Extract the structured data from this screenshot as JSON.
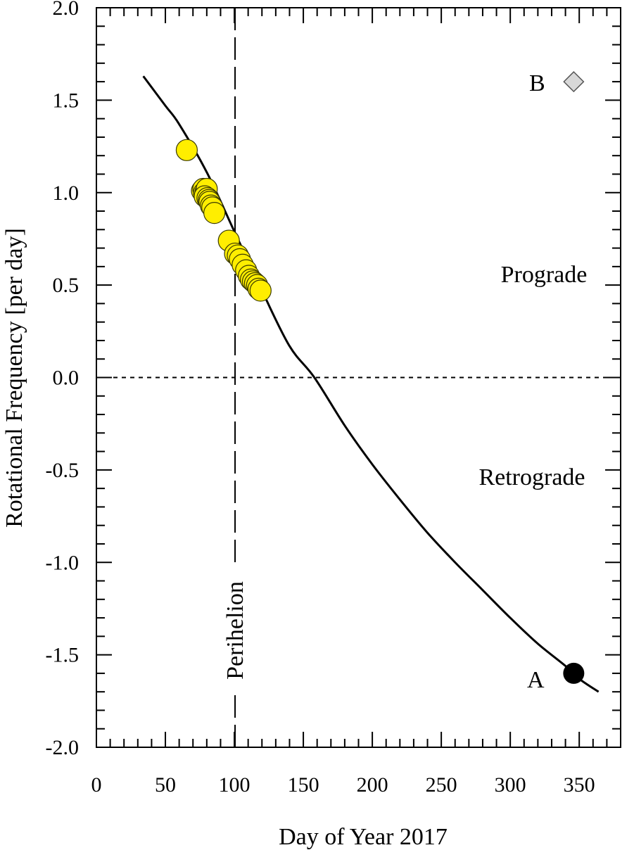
{
  "chart_data": {
    "type": "scatter",
    "xlabel": "Day of Year 2017",
    "ylabel": "Rotational Frequency [per day]",
    "xlim": [
      0,
      380
    ],
    "ylim": [
      -2.0,
      2.0
    ],
    "x_ticks": [
      "0",
      "50",
      "100",
      "150",
      "200",
      "250",
      "300",
      "350"
    ],
    "x_tick_values": [
      0,
      50,
      100,
      150,
      200,
      250,
      300,
      350
    ],
    "y_ticks": [
      "2.0",
      "1.5",
      "1.0",
      "0.5",
      "0.0",
      "-0.5",
      "-1.0",
      "-1.5",
      "-2.0"
    ],
    "y_tick_values": [
      2.0,
      1.5,
      1.0,
      0.5,
      0.0,
      -0.5,
      -1.0,
      -1.5,
      -2.0
    ],
    "grid": false,
    "series": [
      {
        "kind": "points",
        "color": "#ffee00",
        "x": [
          65.5,
          76.5,
          77.5,
          78,
          79,
          80,
          78.5,
          80.5,
          81.5,
          82,
          83,
          84,
          85.5,
          96,
          100.5,
          102.5,
          104,
          106,
          108.5,
          110.5,
          112,
          113.5,
          115,
          116.5,
          117.5,
          119
        ],
        "y": [
          1.23,
          1.01,
          1.02,
          1.0,
          1.0,
          1.02,
          0.98,
          0.97,
          0.96,
          0.95,
          0.93,
          0.92,
          0.89,
          0.74,
          0.67,
          0.66,
          0.64,
          0.61,
          0.58,
          0.55,
          0.53,
          0.52,
          0.51,
          0.5,
          0.48,
          0.47
        ]
      },
      {
        "kind": "fit-curve",
        "color": "#000000",
        "x": [
          34,
          50,
          60,
          80,
          100,
          120,
          140,
          158,
          180,
          200,
          220,
          240,
          260,
          280,
          300,
          320,
          340,
          350,
          364
        ],
        "y": [
          1.63,
          1.47,
          1.37,
          1.11,
          0.79,
          0.47,
          0.17,
          0.0,
          -0.26,
          -0.47,
          -0.66,
          -0.84,
          -1.0,
          -1.15,
          -1.3,
          -1.44,
          -1.56,
          -1.63,
          -1.7
        ]
      }
    ],
    "reference_lines": {
      "zero_line_y": 0.0,
      "perihelion_x": 100.5
    },
    "points": {
      "A": {
        "label": "A",
        "x": 346,
        "y": -1.6,
        "color": "#000000"
      },
      "B": {
        "label": "B",
        "x": 346,
        "y": 1.6,
        "color": "#d8d8d8"
      }
    },
    "annotations": {
      "prograde": "Prograde",
      "retrograde": "Retrograde",
      "perihelion": "Perihelion"
    }
  }
}
